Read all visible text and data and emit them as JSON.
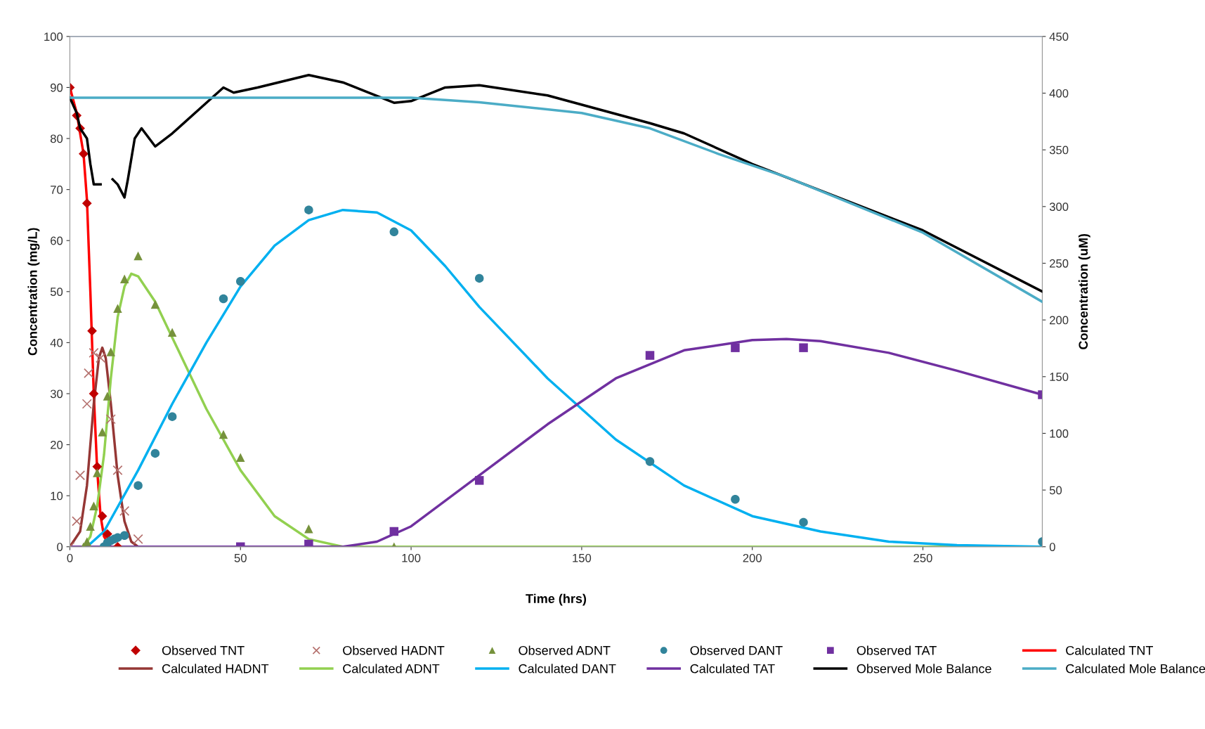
{
  "chart_data": {
    "type": "line",
    "xlabel": "Time (hrs)",
    "ylabel": "Concentration (mg/L)",
    "y2label": "Concentration (uM)",
    "xlim": [
      0,
      285
    ],
    "xticks": [
      0,
      50,
      100,
      150,
      200,
      250
    ],
    "ylim": [
      0,
      100
    ],
    "yticks": [
      0,
      10,
      20,
      30,
      40,
      50,
      60,
      70,
      80,
      90,
      100
    ],
    "y2lim": [
      0,
      450
    ],
    "y2ticks": [
      0,
      50,
      100,
      150,
      200,
      250,
      300,
      350,
      400,
      450
    ],
    "grid": false,
    "legend": "bottom",
    "series": [
      {
        "name": "Observed TNT",
        "type": "scatter",
        "marker": "diamond",
        "color": "#c00000",
        "x": [
          0,
          2,
          3,
          4,
          5,
          6.5,
          7,
          8,
          9.5,
          11,
          14
        ],
        "values": [
          90,
          84.5,
          82,
          77,
          67.3,
          42.3,
          30,
          15.7,
          6,
          2.5,
          0
        ]
      },
      {
        "name": "Observed HADNT",
        "type": "scatter",
        "marker": "cross",
        "color": "#b5716e",
        "x": [
          0,
          2,
          3,
          5,
          5.5,
          7,
          9,
          12,
          14,
          16,
          20
        ],
        "values": [
          0,
          5,
          14,
          28,
          34,
          38,
          37,
          25,
          15,
          7,
          1.5
        ]
      },
      {
        "name": "Observed ADNT",
        "type": "scatter",
        "marker": "triangle",
        "color": "#76923c",
        "x": [
          4,
          5,
          6,
          7,
          8,
          9.5,
          11,
          12,
          14,
          16,
          20,
          25,
          30,
          45,
          50,
          70,
          95
        ],
        "values": [
          0,
          1,
          4,
          8,
          14.5,
          22.5,
          29.5,
          38.2,
          46.7,
          52.5,
          57,
          47.5,
          42,
          22,
          17.5,
          3.5,
          0
        ]
      },
      {
        "name": "Observed DANT",
        "type": "scatter",
        "marker": "circle",
        "color": "#31849b",
        "x": [
          10,
          11,
          12,
          13,
          14,
          16,
          20,
          25,
          30,
          45,
          50,
          70,
          95,
          120,
          170,
          195,
          215,
          285
        ],
        "values": [
          0,
          0.8,
          1.2,
          1.5,
          1.8,
          2.2,
          12,
          18.3,
          25.5,
          48.6,
          52,
          66,
          61.7,
          52.6,
          16.7,
          9.3,
          4.8,
          1
        ]
      },
      {
        "name": "Observed TAT",
        "type": "scatter",
        "marker": "square",
        "color": "#7030a0",
        "x": [
          50,
          70,
          95,
          120,
          170,
          195,
          215,
          285
        ],
        "values": [
          0,
          0.5,
          3,
          13,
          37.5,
          39,
          39,
          29.8
        ]
      },
      {
        "name": "Calculated TNT",
        "color": "#ff0000",
        "x": [
          0,
          2,
          4,
          5,
          6,
          7,
          8,
          9,
          10,
          12
        ],
        "values": [
          90,
          85,
          77,
          68,
          50,
          30,
          15,
          6,
          2,
          0
        ]
      },
      {
        "name": "Calculated HADNT",
        "color": "#953735",
        "x": [
          0,
          3,
          5,
          7,
          8.5,
          9.5,
          10.5,
          12,
          14,
          16,
          18,
          20
        ],
        "values": [
          0,
          3,
          12,
          28,
          37,
          39,
          37,
          28,
          14,
          5,
          1,
          0
        ]
      },
      {
        "name": "Calculated ADNT",
        "color": "#92d050",
        "x": [
          4,
          6,
          8,
          10,
          12,
          14,
          16,
          18,
          20,
          25,
          30,
          40,
          50,
          60,
          70,
          80,
          285
        ],
        "values": [
          0,
          2,
          8,
          18,
          33,
          45,
          51,
          53.5,
          53,
          48,
          41,
          27,
          15,
          6,
          1.5,
          0,
          0
        ]
      },
      {
        "name": "Calculated DANT",
        "color": "#00b0f0",
        "x": [
          5,
          10,
          20,
          30,
          40,
          50,
          60,
          70,
          80,
          90,
          100,
          110,
          120,
          140,
          160,
          180,
          200,
          220,
          240,
          260,
          285
        ],
        "values": [
          0,
          3,
          15,
          28,
          40,
          51,
          59,
          64,
          66,
          65.5,
          62,
          55,
          47,
          33,
          21,
          12,
          6,
          3,
          1,
          0.3,
          0
        ]
      },
      {
        "name": "Calculated TAT",
        "color": "#7030a0",
        "x": [
          0,
          80,
          90,
          100,
          110,
          120,
          140,
          160,
          180,
          200,
          210,
          220,
          240,
          260,
          285
        ],
        "values": [
          0,
          0,
          1,
          4,
          9,
          14,
          24,
          33,
          38.5,
          40.5,
          40.7,
          40.3,
          38,
          34.5,
          29.8
        ]
      },
      {
        "name": "Observed Mole Balance",
        "axis": "y2",
        "color": "#000000",
        "x": [
          0,
          2,
          3,
          4,
          5,
          6,
          7,
          9,
          11,
          12.5,
          14,
          16,
          17,
          19,
          21,
          25,
          30,
          40,
          45,
          48,
          55,
          70,
          80,
          95,
          100,
          110,
          120,
          140,
          170,
          180,
          200,
          250,
          285
        ],
        "values": [
          396,
          382.5,
          369,
          364.5,
          360,
          337.5,
          319.5,
          319.5,
          null,
          324,
          319.5,
          308,
          324,
          360,
          369,
          353,
          364.5,
          391.5,
          405,
          400.5,
          405,
          416,
          409.5,
          391.5,
          393,
          405,
          407,
          398,
          373.5,
          364.5,
          337.5,
          279,
          225
        ]
      },
      {
        "name": "Calculated Mole Balance",
        "axis": "y2",
        "color": "#4bacc6",
        "x": [
          0,
          50,
          100,
          120,
          150,
          170,
          190,
          210,
          250,
          285
        ],
        "values": [
          396,
          396,
          396,
          392,
          382.5,
          369,
          346.5,
          326,
          277,
          216
        ]
      }
    ]
  }
}
